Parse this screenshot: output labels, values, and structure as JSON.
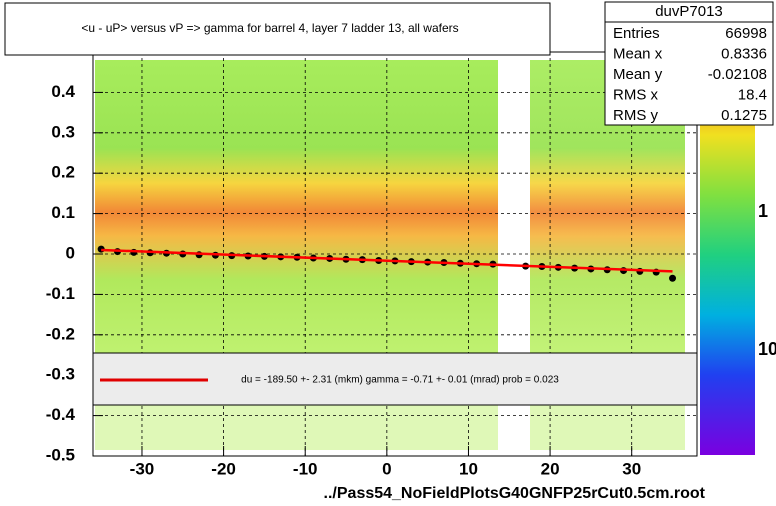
{
  "chart_data": {
    "type": "profile2d",
    "title": "<u - uP>       versus   vP =>  gamma for barrel 4, layer 7 ladder 13, all wafers",
    "xlabel": "../Pass54_NoFieldPlotsG40GNFP25rCut0.5cm.root",
    "xlim": [
      -36,
      38
    ],
    "ylim": [
      -0.5,
      0.5
    ],
    "xticks": [
      -30,
      -20,
      -10,
      0,
      10,
      20,
      30
    ],
    "yticks": [
      -0.5,
      -0.4,
      -0.3,
      -0.2,
      -0.1,
      0,
      0.1,
      0.2,
      0.3,
      0.4
    ],
    "grid": true,
    "series": [
      {
        "name": "profile",
        "color": "#000000",
        "x": [
          -35,
          -33,
          -31,
          -29,
          -27,
          -25,
          -23,
          -21,
          -19,
          -17,
          -15,
          -13,
          -11,
          -9,
          -7,
          -5,
          -3,
          -1,
          1,
          3,
          5,
          7,
          9,
          11,
          13,
          17,
          19,
          21,
          23,
          25,
          27,
          29,
          31,
          33,
          35
        ],
        "values": [
          0.012,
          0.006,
          0.004,
          0.003,
          0.002,
          0.0,
          -0.002,
          -0.003,
          -0.004,
          -0.005,
          -0.006,
          -0.007,
          -0.008,
          -0.01,
          -0.011,
          -0.013,
          -0.014,
          -0.016,
          -0.017,
          -0.019,
          -0.02,
          -0.021,
          -0.023,
          -0.024,
          -0.025,
          -0.03,
          -0.031,
          -0.033,
          -0.035,
          -0.037,
          -0.039,
          -0.041,
          -0.043,
          -0.045,
          -0.06
        ]
      },
      {
        "name": "fit",
        "color": "#ff0000",
        "x": [
          -35,
          35
        ],
        "values": [
          0.01,
          -0.043
        ]
      }
    ],
    "legend_text": "du = -189.50 +-  2.31 (mkm) gamma =   -0.71 +-  0.01 (mrad) prob = 0.023",
    "stats": {
      "name": "duvP7013",
      "rows": [
        {
          "label": "Entries",
          "value": 66998
        },
        {
          "label": "Mean x",
          "value": 0.8336
        },
        {
          "label": "Mean y",
          "value": -0.02108
        },
        {
          "label": "RMS x",
          "value": 18.4
        },
        {
          "label": "RMS y",
          "value": 0.1275
        }
      ]
    },
    "palette_labels": [
      "1",
      "10"
    ]
  }
}
